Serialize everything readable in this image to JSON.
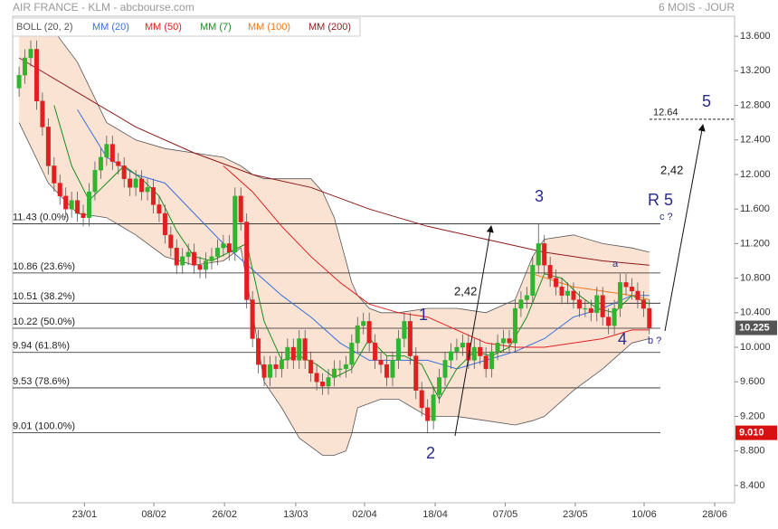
{
  "header": {
    "title": "AIR FRANCE - KLM - abcbourse.com",
    "period": "6 MOIS - JOUR"
  },
  "chart_data": {
    "type": "candlestick",
    "up_color": "#2fb52f",
    "down_color": "#e02020",
    "xlim": [
      -1.1,
      122.6
    ],
    "xticks": [
      {
        "value": 11.2,
        "label": "23/01"
      },
      {
        "value": 23.1,
        "label": "08/02"
      },
      {
        "value": 35.2,
        "label": "26/02"
      },
      {
        "value": 47.4,
        "label": "13/03"
      },
      {
        "value": 59.2,
        "label": "02/04"
      },
      {
        "value": 71.3,
        "label": "18/04"
      },
      {
        "value": 83.3,
        "label": "07/05"
      },
      {
        "value": 95.3,
        "label": "23/05"
      },
      {
        "value": 107.1,
        "label": "10/06"
      },
      {
        "value": 119.2,
        "label": "28/06"
      }
    ],
    "ylim": [
      8.2,
      13.8
    ],
    "yticks": [
      {
        "value": 8.4,
        "label": "8.400"
      },
      {
        "value": 8.8,
        "label": "8.800"
      },
      {
        "value": 9.2,
        "label": "9.200"
      },
      {
        "value": 9.6,
        "label": "9.600"
      },
      {
        "value": 10,
        "label": "10.000"
      },
      {
        "value": 10.4,
        "label": "10.400"
      },
      {
        "value": 10.8,
        "label": "10.800"
      },
      {
        "value": 11.2,
        "label": "11.200"
      },
      {
        "value": 11.6,
        "label": "11.600"
      },
      {
        "value": 12,
        "label": "12.000"
      },
      {
        "value": 12.4,
        "label": "12.400"
      },
      {
        "value": 12.8,
        "label": "12.800"
      },
      {
        "value": 13.2,
        "label": "13.200"
      },
      {
        "value": 13.6,
        "label": "13.600"
      }
    ],
    "candles": {
      "x": [
        0,
        1,
        2,
        3,
        4,
        5,
        6,
        7,
        8,
        9,
        10,
        11,
        12,
        13,
        14,
        15,
        16,
        17,
        18,
        19,
        20,
        21,
        22,
        23,
        24,
        25,
        26,
        27,
        28,
        29,
        30,
        31,
        32,
        33,
        34,
        35,
        36,
        37,
        38,
        39,
        40,
        41,
        42,
        43,
        44,
        45,
        46,
        47,
        48,
        49,
        50,
        51,
        52,
        53,
        54,
        55,
        56,
        57,
        58,
        59,
        60,
        61,
        62,
        63,
        64,
        65,
        66,
        67,
        68,
        69,
        70,
        71,
        72,
        73,
        74,
        75,
        76,
        77,
        78,
        79,
        80,
        81,
        82,
        83,
        84,
        85,
        86,
        87,
        88,
        89,
        90,
        91,
        92,
        93,
        94,
        95,
        96,
        97,
        98,
        99,
        100,
        101,
        102,
        103,
        104,
        105,
        106,
        107,
        108
      ],
      "ohlc": [
        [
          13.0,
          13.25,
          12.9,
          13.15
        ],
        [
          13.15,
          13.45,
          13.05,
          13.35
        ],
        [
          13.35,
          13.55,
          13.25,
          13.45
        ],
        [
          13.45,
          13.55,
          12.75,
          12.85
        ],
        [
          12.85,
          12.95,
          12.45,
          12.55
        ],
        [
          12.55,
          12.65,
          12.0,
          12.1
        ],
        [
          12.1,
          12.2,
          11.8,
          11.9
        ],
        [
          11.9,
          12.0,
          11.65,
          11.75
        ],
        [
          11.75,
          11.85,
          11.5,
          11.6
        ],
        [
          11.6,
          11.8,
          11.5,
          11.7
        ],
        [
          11.7,
          11.8,
          11.45,
          11.55
        ],
        [
          11.55,
          11.65,
          11.4,
          11.5
        ],
        [
          11.5,
          11.9,
          11.4,
          11.8
        ],
        [
          11.8,
          12.15,
          11.7,
          12.05
        ],
        [
          12.05,
          12.3,
          11.95,
          12.2
        ],
        [
          12.2,
          12.45,
          12.1,
          12.35
        ],
        [
          12.35,
          12.45,
          12.05,
          12.15
        ],
        [
          12.15,
          12.25,
          12.0,
          12.1
        ],
        [
          12.1,
          12.2,
          11.85,
          11.95
        ],
        [
          11.95,
          12.05,
          11.75,
          11.85
        ],
        [
          11.85,
          12.05,
          11.75,
          11.95
        ],
        [
          11.95,
          12.05,
          11.7,
          11.8
        ],
        [
          11.8,
          11.95,
          11.7,
          11.85
        ],
        [
          11.85,
          11.95,
          11.55,
          11.65
        ],
        [
          11.65,
          11.75,
          11.45,
          11.55
        ],
        [
          11.55,
          11.65,
          11.2,
          11.3
        ],
        [
          11.3,
          11.4,
          11.05,
          11.15
        ],
        [
          11.15,
          11.25,
          10.85,
          10.95
        ],
        [
          10.95,
          11.15,
          10.85,
          11.05
        ],
        [
          11.05,
          11.2,
          10.95,
          11.1
        ],
        [
          11.1,
          11.2,
          10.85,
          10.95
        ],
        [
          10.95,
          11.05,
          10.8,
          10.9
        ],
        [
          10.9,
          11.1,
          10.8,
          11.0
        ],
        [
          11.0,
          11.15,
          10.9,
          11.05
        ],
        [
          11.05,
          11.25,
          10.95,
          11.15
        ],
        [
          11.15,
          11.3,
          11.05,
          11.2
        ],
        [
          11.2,
          11.3,
          11.0,
          11.1
        ],
        [
          11.1,
          11.85,
          11.0,
          11.75
        ],
        [
          11.75,
          11.85,
          11.35,
          11.45
        ],
        [
          11.45,
          11.55,
          10.45,
          10.55
        ],
        [
          10.55,
          10.65,
          10.0,
          10.1
        ],
        [
          10.1,
          10.2,
          9.7,
          9.8
        ],
        [
          9.8,
          9.9,
          9.55,
          9.65
        ],
        [
          9.65,
          9.9,
          9.55,
          9.8
        ],
        [
          9.8,
          9.9,
          9.65,
          9.75
        ],
        [
          9.75,
          9.95,
          9.65,
          9.85
        ],
        [
          9.85,
          10.1,
          9.75,
          10.0
        ],
        [
          10.0,
          10.1,
          9.75,
          9.85
        ],
        [
          9.85,
          10.2,
          9.75,
          10.1
        ],
        [
          10.1,
          10.2,
          9.75,
          9.85
        ],
        [
          9.85,
          9.95,
          9.6,
          9.7
        ],
        [
          9.7,
          9.8,
          9.5,
          9.6
        ],
        [
          9.6,
          9.7,
          9.45,
          9.55
        ],
        [
          9.55,
          9.75,
          9.45,
          9.65
        ],
        [
          9.65,
          9.85,
          9.55,
          9.75
        ],
        [
          9.75,
          9.85,
          9.65,
          9.75
        ],
        [
          9.75,
          9.9,
          9.65,
          9.8
        ],
        [
          9.8,
          10.15,
          9.7,
          10.05
        ],
        [
          10.05,
          10.35,
          9.95,
          10.25
        ],
        [
          10.25,
          10.4,
          10.15,
          10.3
        ],
        [
          10.3,
          10.4,
          9.95,
          10.05
        ],
        [
          10.05,
          10.15,
          9.75,
          9.85
        ],
        [
          9.85,
          9.95,
          9.7,
          9.8
        ],
        [
          9.8,
          9.9,
          9.55,
          9.65
        ],
        [
          9.65,
          9.95,
          9.55,
          9.85
        ],
        [
          9.85,
          10.2,
          9.75,
          10.1
        ],
        [
          10.1,
          10.4,
          10.0,
          10.3
        ],
        [
          10.3,
          10.4,
          9.8,
          9.9
        ],
        [
          9.9,
          10.0,
          9.4,
          9.5
        ],
        [
          9.5,
          9.6,
          9.2,
          9.3
        ],
        [
          9.3,
          9.4,
          9.01,
          9.15
        ],
        [
          9.15,
          9.55,
          9.05,
          9.45
        ],
        [
          9.45,
          9.75,
          9.35,
          9.65
        ],
        [
          9.65,
          9.95,
          9.55,
          9.85
        ],
        [
          9.85,
          10.05,
          9.75,
          9.95
        ],
        [
          9.95,
          10.1,
          9.85,
          10.0
        ],
        [
          10.0,
          10.15,
          9.9,
          10.05
        ],
        [
          10.05,
          10.15,
          9.75,
          9.85
        ],
        [
          9.85,
          10.1,
          9.75,
          10.0
        ],
        [
          10.0,
          10.1,
          9.8,
          9.9
        ],
        [
          9.9,
          10.0,
          9.65,
          9.75
        ],
        [
          9.75,
          10.05,
          9.65,
          9.95
        ],
        [
          9.95,
          10.15,
          9.85,
          10.05
        ],
        [
          10.05,
          10.2,
          9.95,
          10.1
        ],
        [
          10.1,
          10.2,
          9.95,
          10.05
        ],
        [
          10.05,
          10.55,
          9.95,
          10.45
        ],
        [
          10.45,
          10.65,
          10.35,
          10.55
        ],
        [
          10.55,
          10.7,
          10.45,
          10.6
        ],
        [
          10.6,
          11.05,
          10.5,
          10.95
        ],
        [
          10.95,
          11.43,
          10.85,
          11.2
        ],
        [
          11.2,
          11.3,
          10.85,
          10.95
        ],
        [
          10.95,
          11.05,
          10.7,
          10.8
        ],
        [
          10.8,
          10.9,
          10.6,
          10.7
        ],
        [
          10.7,
          10.8,
          10.5,
          10.6
        ],
        [
          10.6,
          10.75,
          10.5,
          10.65
        ],
        [
          10.65,
          10.75,
          10.45,
          10.55
        ],
        [
          10.55,
          10.65,
          10.35,
          10.45
        ],
        [
          10.45,
          10.55,
          10.35,
          10.45
        ],
        [
          10.45,
          10.55,
          10.3,
          10.4
        ],
        [
          10.4,
          10.7,
          10.3,
          10.6
        ],
        [
          10.6,
          10.7,
          10.25,
          10.35
        ],
        [
          10.35,
          10.45,
          10.15,
          10.25
        ],
        [
          10.25,
          10.55,
          10.15,
          10.45
        ],
        [
          10.45,
          10.85,
          10.35,
          10.75
        ],
        [
          10.75,
          10.85,
          10.6,
          10.7
        ],
        [
          10.7,
          10.8,
          10.55,
          10.65
        ],
        [
          10.65,
          10.75,
          10.45,
          10.55
        ],
        [
          10.55,
          10.65,
          10.35,
          10.45
        ],
        [
          10.45,
          10.55,
          10.15,
          10.225
        ]
      ]
    },
    "series": [
      {
        "name": "BOLL (20, 2)",
        "color": "#555555",
        "fill": "#fbe3d4",
        "x": [
          0,
          5,
          10,
          15,
          20,
          25,
          30,
          35,
          38,
          40,
          42,
          45,
          48,
          50,
          52,
          54,
          56,
          57,
          58,
          60,
          62,
          65,
          70,
          75,
          80,
          85,
          88,
          90,
          95,
          100,
          105,
          108
        ],
        "upper": [
          13.7,
          13.75,
          13.3,
          12.6,
          12.4,
          12.3,
          12.25,
          12.2,
          12.1,
          12.0,
          11.95,
          11.95,
          11.95,
          11.95,
          11.8,
          11.5,
          11.0,
          10.75,
          10.6,
          10.45,
          10.4,
          10.4,
          10.45,
          10.45,
          10.4,
          10.55,
          11.05,
          11.25,
          11.3,
          11.2,
          11.15,
          11.1
        ],
        "lower": [
          12.6,
          11.9,
          11.55,
          11.5,
          11.3,
          11.05,
          10.95,
          11.0,
          11.15,
          10.4,
          9.6,
          9.3,
          8.95,
          8.85,
          8.75,
          8.75,
          8.8,
          9.0,
          9.3,
          9.35,
          9.4,
          9.4,
          9.2,
          9.2,
          9.15,
          9.1,
          9.15,
          9.2,
          9.5,
          9.75,
          10.05,
          10.1
        ]
      },
      {
        "name": "MM (20)",
        "color": "#3b6fd8",
        "x": [
          10,
          15,
          20,
          25,
          30,
          35,
          40,
          45,
          50,
          55,
          60,
          65,
          70,
          75,
          80,
          85,
          90,
          95,
          100,
          105,
          108
        ],
        "values": [
          12.75,
          12.2,
          12.0,
          11.9,
          11.55,
          11.2,
          10.9,
          10.6,
          10.35,
          10.05,
          9.85,
          9.85,
          9.85,
          9.75,
          9.85,
          9.95,
          10.1,
          10.35,
          10.45,
          10.6,
          10.6
        ]
      },
      {
        "name": "MM (50)",
        "color": "#e02020",
        "x": [
          35,
          40,
          45,
          50,
          55,
          60,
          65,
          70,
          75,
          80,
          85,
          90,
          95,
          100,
          105,
          108
        ],
        "values": [
          12.1,
          11.8,
          11.4,
          11.05,
          10.75,
          10.5,
          10.4,
          10.35,
          10.2,
          10.05,
          10.0,
          10.0,
          10.05,
          10.1,
          10.2,
          10.2
        ]
      },
      {
        "name": "MM (7)",
        "color": "#1c8c1c",
        "x": [
          6,
          9,
          12,
          15,
          18,
          21,
          24,
          27,
          30,
          33,
          36,
          39,
          42,
          45,
          48,
          51,
          54,
          57,
          60,
          63,
          66,
          69,
          72,
          75,
          78,
          81,
          84,
          87,
          90,
          93,
          96,
          99,
          102,
          105,
          108
        ],
        "values": [
          12.8,
          12.1,
          11.7,
          11.9,
          12.1,
          11.95,
          11.75,
          11.35,
          11.05,
          11.0,
          11.1,
          11.2,
          10.3,
          9.85,
          9.9,
          9.8,
          9.65,
          9.75,
          10.1,
          9.9,
          9.9,
          9.8,
          9.4,
          9.75,
          9.95,
          9.9,
          10.0,
          10.35,
          10.85,
          10.8,
          10.6,
          10.45,
          10.4,
          10.6,
          10.5
        ]
      },
      {
        "name": "MM (100)",
        "color": "#f07a1a",
        "x": [
          88,
          95,
          100,
          105,
          108
        ],
        "values": [
          10.85,
          10.7,
          10.65,
          10.6,
          10.55
        ]
      },
      {
        "name": "MM (200)",
        "color": "#8b1a1a",
        "x": [
          0,
          10,
          20,
          30,
          40,
          50,
          60,
          70,
          80,
          90,
          100,
          108
        ],
        "values": [
          13.35,
          12.95,
          12.55,
          12.25,
          12.0,
          11.85,
          11.6,
          11.4,
          11.25,
          11.1,
          11.0,
          10.95
        ]
      }
    ],
    "fib_levels": [
      {
        "value": 11.43,
        "label": "11.43 (0.0%)"
      },
      {
        "value": 10.86,
        "label": "10.86 (23.6%)"
      },
      {
        "value": 10.51,
        "label": "10.51 (38.2%)"
      },
      {
        "value": 10.22,
        "label": "10.22 (50.0%)"
      },
      {
        "value": 9.94,
        "label": "9.94 (61.8%)"
      },
      {
        "value": 9.53,
        "label": "9.53 (78.6%)"
      },
      {
        "value": 9.01,
        "label": "9.01 (100.0%)"
      }
    ],
    "target": {
      "value": 12.64,
      "label": "12.64"
    },
    "last_price": {
      "value": 10.225,
      "label": "10.225",
      "color": "#555555"
    },
    "low_price": {
      "value": 9.01,
      "label": "9.010",
      "color": "#d81010"
    },
    "annotations": [
      "1",
      "2",
      "3",
      "4",
      "5",
      "R 5",
      "c ?",
      "b ?",
      "a",
      "2,42",
      "2,42"
    ]
  }
}
